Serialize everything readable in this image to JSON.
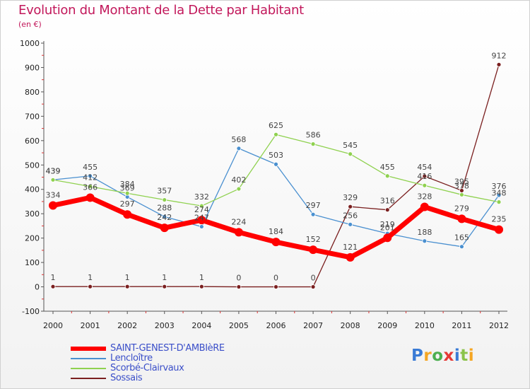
{
  "header": {
    "title": "Evolution du Montant de la Dette par Habitant",
    "subtitle": "(en €)"
  },
  "logo": {
    "letters": [
      "P",
      "r",
      "o",
      "x",
      "i",
      "t",
      "i"
    ]
  },
  "chart_data": {
    "type": "line",
    "title": "Evolution du Montant de la Dette par Habitant",
    "subtitle": "(en €)",
    "x": [
      "2000",
      "2001",
      "2002",
      "2003",
      "2004",
      "2005",
      "2006",
      "2007",
      "2008",
      "2009",
      "2010",
      "2011",
      "2012"
    ],
    "ylim": [
      -100,
      1000
    ],
    "yticks": [
      "-100",
      "0",
      "100",
      "200",
      "300",
      "400",
      "500",
      "600",
      "700",
      "800",
      "900",
      "1000"
    ],
    "grid": false,
    "legend_position": "bottom-left",
    "series": [
      {
        "name": "SAINT-GENEST-D'AMBIèRE",
        "color": "#ff0000",
        "values": [
          334,
          366,
          297,
          242,
          274,
          224,
          184,
          152,
          121,
          201,
          328,
          279,
          235
        ],
        "labels": [
          "334",
          "366",
          "297",
          "242",
          "274",
          "224",
          "184",
          "152",
          "121",
          "201",
          "328",
          "279",
          "235"
        ]
      },
      {
        "name": "Lencloître",
        "color": "#4a90d0",
        "values": [
          439,
          455,
          369,
          288,
          247,
          568,
          503,
          297,
          256,
          219,
          188,
          165,
          376
        ],
        "labels": [
          "439",
          "455",
          "369",
          "288",
          "247",
          "568",
          "503",
          "297",
          "256",
          "219",
          "188",
          "165",
          "376"
        ]
      },
      {
        "name": "Scorbé-Clairvaux",
        "color": "#8fd14f",
        "values": [
          439,
          412,
          384,
          357,
          332,
          402,
          625,
          586,
          545,
          455,
          416,
          378,
          348
        ],
        "labels": [
          "439",
          "412",
          "384",
          "357",
          "332",
          "402",
          "625",
          "586",
          "545",
          "455",
          "416",
          "378",
          "348"
        ]
      },
      {
        "name": "Sossais",
        "color": "#7a1f1f",
        "values": [
          1,
          1,
          1,
          1,
          1,
          0,
          0,
          0,
          329,
          316,
          454,
          395,
          912
        ],
        "labels": [
          "1",
          "1",
          "1",
          "1",
          "1",
          "0",
          "0",
          "0",
          "329",
          "316",
          "454",
          "395",
          "912"
        ]
      }
    ]
  }
}
